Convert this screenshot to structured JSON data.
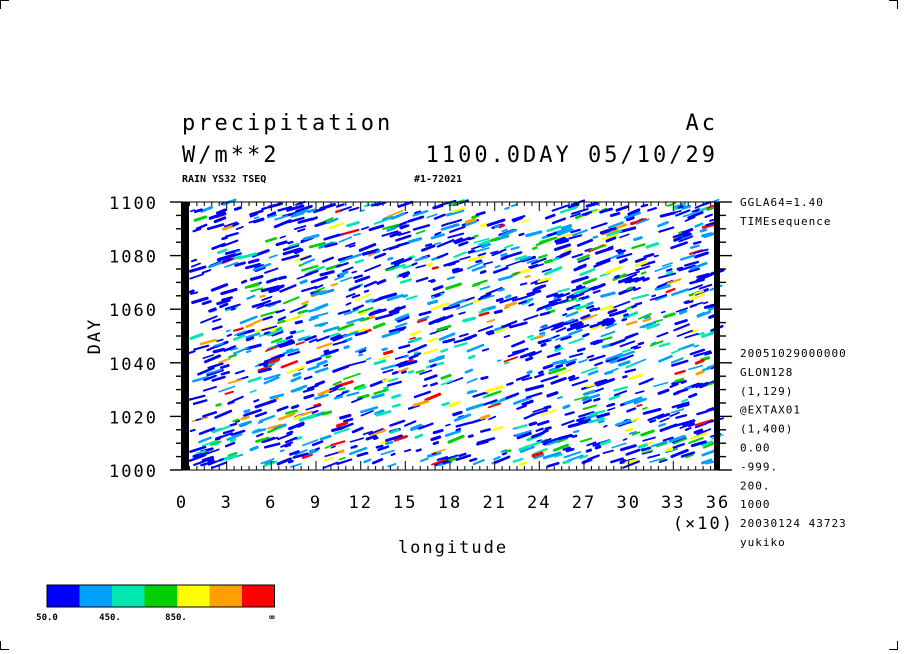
{
  "header": {
    "title": "precipitation",
    "units": "W/m**2",
    "code_right": "Ac",
    "time_label": "1100.0DAY 05/10/29",
    "subtitle_left": "RAIN YS32 TSEQ",
    "subtitle_mid": "#1-72021"
  },
  "side_info": {
    "top": [
      "GGLA64=1.40",
      "TIMEsequence"
    ],
    "bottom": [
      "20051029000000",
      "GLON128",
      "(1,129)",
      "@EXTAX01",
      "(1,400)",
      "0.00",
      "-999.",
      "200.",
      "1000",
      "20030124  43723",
      "yukiko"
    ]
  },
  "chart_data": {
    "type": "heatmap",
    "xlabel": "longitude",
    "ylabel": "DAY",
    "x_multiplier_label": "(×10)",
    "xlim": [
      0,
      36
    ],
    "ylim": [
      1000,
      1100
    ],
    "x_ticks": [
      "0",
      "3",
      "6",
      "9",
      "12",
      "15",
      "18",
      "21",
      "24",
      "27",
      "30",
      "33",
      "36"
    ],
    "y_ticks": [
      "1000",
      "1020",
      "1040",
      "1060",
      "1080",
      "1100"
    ],
    "color_levels": [
      {
        "color": "#0000ff"
      },
      {
        "color": "#00a0ff"
      },
      {
        "color": "#00e8b0"
      },
      {
        "color": "#00d000"
      },
      {
        "color": "#ffff00"
      },
      {
        "color": "#ffa000"
      },
      {
        "color": "#ff0000"
      }
    ],
    "colorbar_labels": [
      "50.0",
      "450.",
      "850.",
      "∞"
    ],
    "pattern": "scattered eastward-propagating rain streaks (Hovmoller time-longitude diagram)"
  }
}
